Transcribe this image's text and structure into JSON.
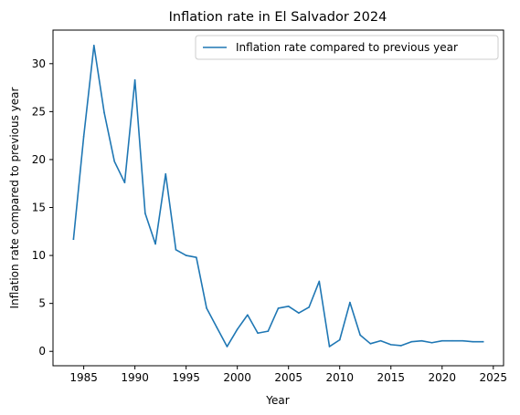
{
  "chart_data": {
    "type": "line",
    "title": "Inflation rate in El Salvador 2024",
    "xlabel": "Year",
    "ylabel": "Inflation rate compared to previous year",
    "xlim": [
      1982,
      2026
    ],
    "ylim": [
      -1.5,
      33.5
    ],
    "xticks": [
      1985,
      1990,
      1995,
      2000,
      2005,
      2010,
      2015,
      2020,
      2025
    ],
    "yticks": [
      0,
      5,
      10,
      15,
      20,
      25,
      30
    ],
    "grid": false,
    "legend_position": "top-right",
    "series": [
      {
        "name": "Inflation rate compared to previous year",
        "color": "#1f77b4",
        "x": [
          1984,
          1985,
          1986,
          1987,
          1988,
          1989,
          1990,
          1991,
          1992,
          1993,
          1994,
          1995,
          1996,
          1997,
          1998,
          1999,
          2000,
          2001,
          2002,
          2003,
          2004,
          2005,
          2006,
          2007,
          2008,
          2009,
          2010,
          2011,
          2012,
          2013,
          2014,
          2015,
          2016,
          2017,
          2018,
          2019,
          2020,
          2021,
          2022,
          2023,
          2024
        ],
        "values": [
          11.7,
          22.4,
          31.9,
          24.9,
          19.8,
          17.6,
          28.3,
          14.4,
          11.2,
          18.5,
          10.6,
          10.0,
          9.8,
          4.5,
          2.5,
          0.5,
          2.3,
          3.8,
          1.9,
          2.1,
          4.5,
          4.7,
          4.0,
          4.6,
          7.3,
          0.5,
          1.2,
          5.1,
          1.7,
          0.8,
          1.1,
          0.7,
          0.6,
          1.0,
          1.1,
          0.9,
          1.1,
          1.1,
          1.1,
          1.0,
          1.0
        ]
      }
    ]
  }
}
